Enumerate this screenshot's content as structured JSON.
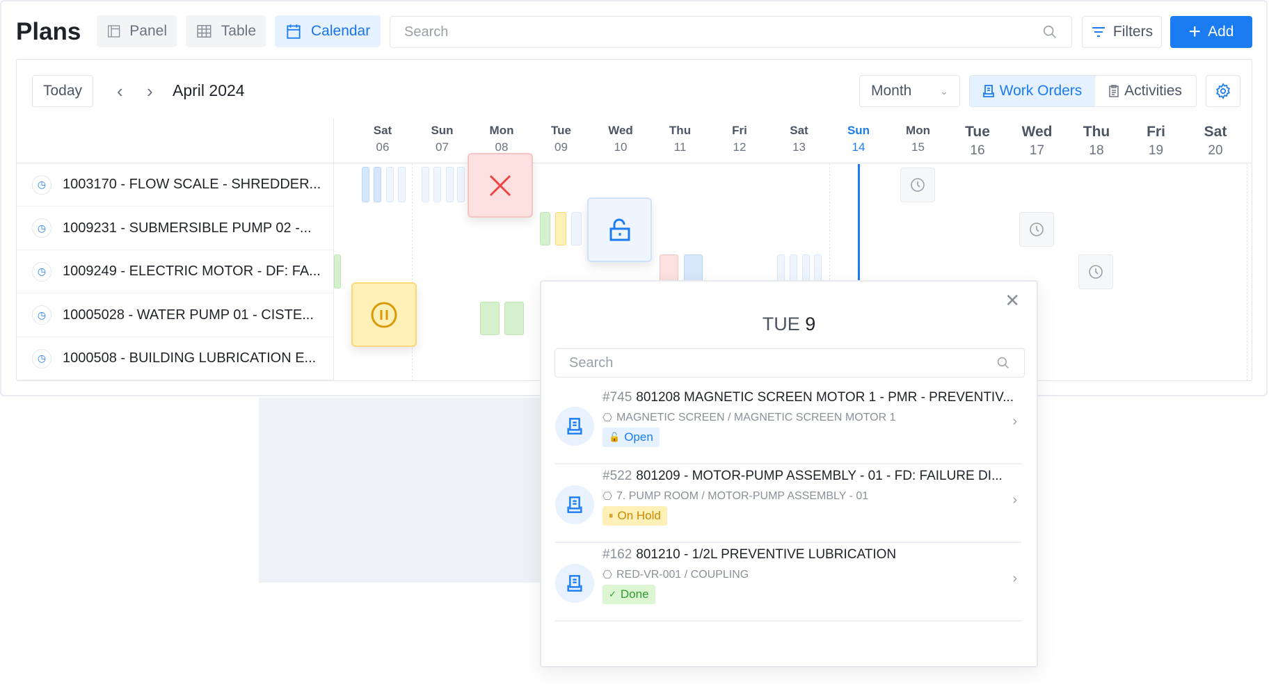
{
  "header": {
    "title": "Plans",
    "views": [
      {
        "label": "Panel",
        "icon": "panel-icon"
      },
      {
        "label": "Table",
        "icon": "table-icon"
      },
      {
        "label": "Calendar",
        "icon": "calendar-icon",
        "active": true
      }
    ],
    "search_placeholder": "Search",
    "filters_label": "Filters",
    "add_label": "Add"
  },
  "toolbar": {
    "today_label": "Today",
    "period": "April 2024",
    "view_select": "Month",
    "segments": [
      {
        "label": "Work Orders",
        "active": true
      },
      {
        "label": "Activities"
      }
    ]
  },
  "days": [
    {
      "d": "Sat",
      "n": "06"
    },
    {
      "d": "Sun",
      "n": "07"
    },
    {
      "d": "Mon",
      "n": "08"
    },
    {
      "d": "Tue",
      "n": "09"
    },
    {
      "d": "Wed",
      "n": "10"
    },
    {
      "d": "Thu",
      "n": "11"
    },
    {
      "d": "Fri",
      "n": "12"
    },
    {
      "d": "Sat",
      "n": "13"
    },
    {
      "d": "Sun",
      "n": "14",
      "today": true
    },
    {
      "d": "Mon",
      "n": "15"
    },
    {
      "d": "Tue",
      "n": "16"
    },
    {
      "d": "Wed",
      "n": "17"
    },
    {
      "d": "Thu",
      "n": "18"
    },
    {
      "d": "Fri",
      "n": "19"
    },
    {
      "d": "Sat",
      "n": "20"
    }
  ],
  "rows": [
    "1003170 - FLOW SCALE - SHREDDER...",
    "1009231 - SUBMERSIBLE PUMP 02 -...",
    "1009249 - ELECTRIC MOTOR - DF: FA...",
    "10005028 - WATER PUMP 01 - CISTE...",
    "1000508 - BUILDING LUBRICATION E..."
  ],
  "popup": {
    "title_day": "TUE",
    "title_num": "9",
    "search_placeholder": "Search",
    "items": [
      {
        "num": "#745",
        "title": "801208 MAGNETIC SCREEN MOTOR 1 - PMR - PREVENTIV...",
        "path": "MAGNETIC SCREEN / MAGNETIC SCREEN MOTOR 1",
        "status": "Open"
      },
      {
        "num": "#522",
        "title": "801209 - MOTOR-PUMP ASSEMBLY - 01 - FD: FAILURE DI...",
        "path": "7. PUMP ROOM / MOTOR-PUMP ASSEMBLY - 01",
        "status": "On Hold"
      },
      {
        "num": "#162",
        "title": "801210 - 1/2L PREVENTIVE LUBRICATION",
        "path": "RED-VR-001 / COUPLING",
        "status": "Done"
      }
    ]
  },
  "colors": {
    "accent": "#1a7cf0",
    "open": "#e5f1ff",
    "hold": "#fff0b8",
    "done": "#dcf5d3",
    "cancelled": "#fde1e1"
  }
}
